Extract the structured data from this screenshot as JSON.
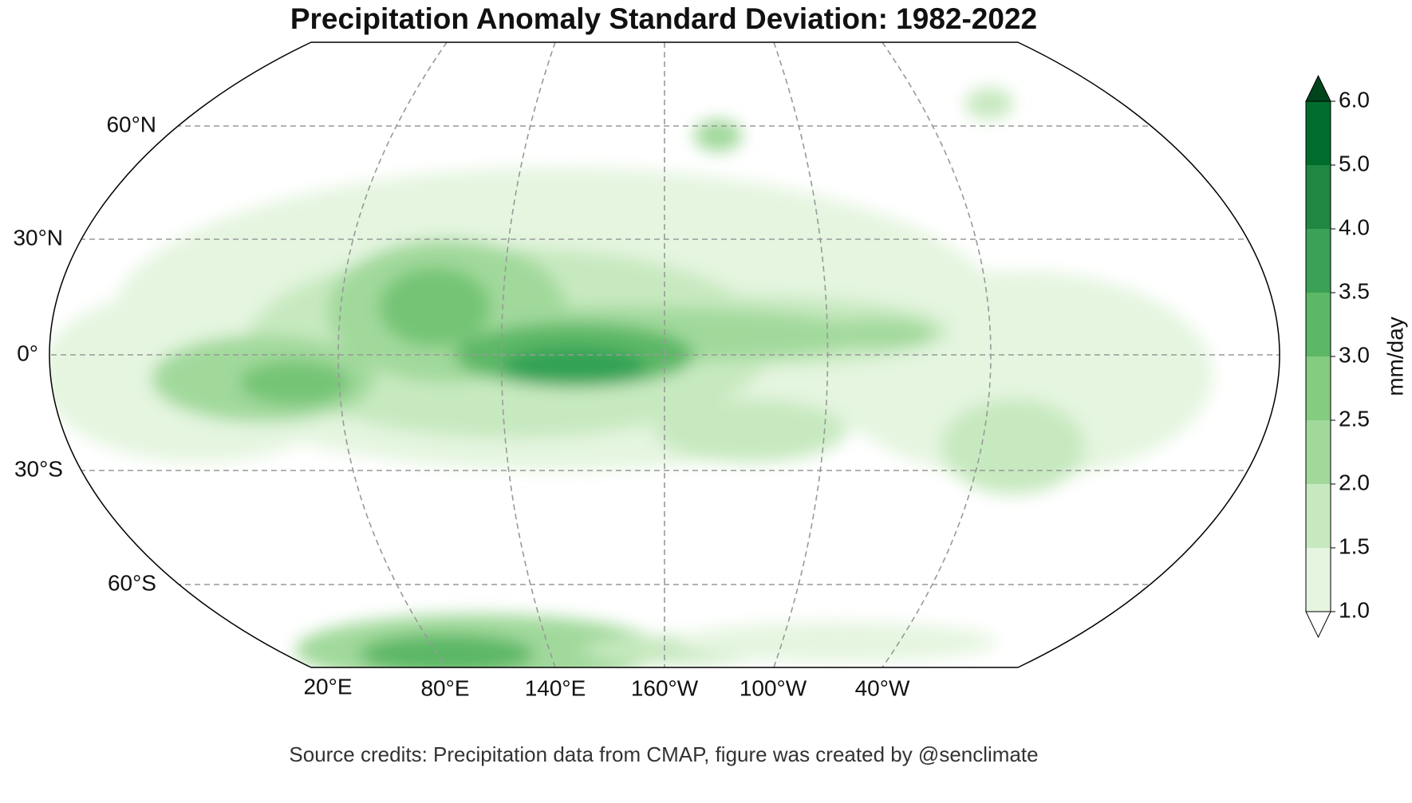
{
  "title": "Precipitation Anomaly Standard Deviation: 1982-2022",
  "map": {
    "lat_labels": [
      "60°N",
      "30°N",
      "0°",
      "30°S",
      "60°S"
    ],
    "lon_labels": [
      "20°E",
      "80°E",
      "140°E",
      "160°W",
      "100°W",
      "40°W"
    ]
  },
  "colorbar": {
    "label": "mm/day",
    "ticks": [
      {
        "value": 1,
        "label": "1.0"
      },
      {
        "value": 1.5,
        "label": "1.5"
      },
      {
        "value": 2,
        "label": "2.0"
      },
      {
        "value": 2.5,
        "label": "2.5"
      },
      {
        "value": 3,
        "label": "3.0"
      },
      {
        "value": 3.5,
        "label": "3.5"
      },
      {
        "value": 4,
        "label": "4.0"
      },
      {
        "value": 5,
        "label": "5.0"
      },
      {
        "value": 6,
        "label": "6.0"
      }
    ],
    "colors": [
      "#e5f5e0",
      "#c7e9c0",
      "#a1d99b",
      "#84cc80",
      "#5cb766",
      "#3aa156",
      "#1f8742",
      "#006d2c"
    ],
    "over_color": "#00441b",
    "under_color": "#ffffff"
  },
  "credit": "Source credits: Precipitation data from CMAP, figure was created by @senclimate"
}
